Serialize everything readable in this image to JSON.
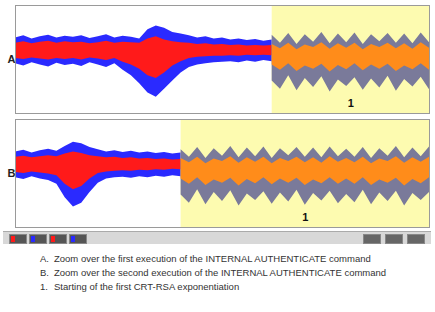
{
  "chart_data": [
    {
      "type": "area",
      "title": "A",
      "annotation": "1",
      "highlight": [
        62,
        100
      ],
      "xlim": [
        0,
        100
      ],
      "ylim": [
        -1,
        1
      ],
      "tick_labels": false,
      "series": [
        {
          "color": "#2a2aff",
          "x": [
            0,
            2,
            4,
            6,
            8,
            10,
            12,
            14,
            16,
            18,
            20,
            22,
            24,
            26,
            28,
            30,
            32,
            34,
            36,
            38,
            40,
            42,
            44,
            46,
            48,
            50,
            52,
            54,
            56,
            58,
            60,
            62
          ],
          "high": [
            0.4,
            0.44,
            0.38,
            0.42,
            0.45,
            0.4,
            0.43,
            0.41,
            0.44,
            0.39,
            0.42,
            0.46,
            0.4,
            0.43,
            0.41,
            0.38,
            0.55,
            0.62,
            0.58,
            0.5,
            0.47,
            0.44,
            0.4,
            0.42,
            0.38,
            0.4,
            0.36,
            0.38,
            0.35,
            0.37,
            0.34,
            0.36
          ],
          "low": [
            -0.08,
            -0.12,
            -0.06,
            -0.1,
            -0.14,
            -0.07,
            -0.11,
            -0.09,
            -0.13,
            -0.06,
            -0.1,
            -0.15,
            -0.08,
            -0.2,
            -0.3,
            -0.45,
            -0.62,
            -0.7,
            -0.55,
            -0.4,
            -0.25,
            -0.15,
            -0.1,
            -0.08,
            -0.06,
            -0.05,
            -0.04,
            -0.06,
            -0.03,
            -0.05,
            -0.02,
            -0.04
          ]
        },
        {
          "color": "#ff1a1a",
          "x": [
            0,
            2,
            4,
            6,
            8,
            10,
            12,
            14,
            16,
            18,
            20,
            22,
            24,
            26,
            28,
            30,
            32,
            34,
            36,
            38,
            40,
            42,
            44,
            46,
            48,
            50,
            52,
            54,
            56,
            58,
            60,
            62
          ],
          "high": [
            0.3,
            0.33,
            0.29,
            0.32,
            0.34,
            0.3,
            0.33,
            0.31,
            0.32,
            0.29,
            0.31,
            0.34,
            0.3,
            0.32,
            0.31,
            0.3,
            0.38,
            0.42,
            0.36,
            0.33,
            0.31,
            0.3,
            0.28,
            0.29,
            0.27,
            0.28,
            0.26,
            0.27,
            0.25,
            0.26,
            0.25,
            0.26
          ],
          "low": [
            0.02,
            0.0,
            0.03,
            0.01,
            -0.01,
            0.02,
            0.0,
            0.02,
            -0.01,
            0.03,
            0.01,
            -0.02,
            0.02,
            -0.05,
            -0.1,
            -0.18,
            -0.3,
            -0.35,
            -0.25,
            -0.12,
            -0.04,
            0.02,
            0.04,
            0.05,
            0.06,
            0.06,
            0.07,
            0.06,
            0.08,
            0.07,
            0.08,
            0.07
          ]
        },
        {
          "color": "#7a7a9a",
          "x": [
            62,
            64,
            66,
            68,
            70,
            72,
            74,
            76,
            78,
            80,
            82,
            84,
            86,
            88,
            90,
            92,
            94,
            96,
            98,
            100
          ],
          "high": [
            0.45,
            0.3,
            0.48,
            0.28,
            0.46,
            0.32,
            0.5,
            0.29,
            0.47,
            0.31,
            0.49,
            0.28,
            0.46,
            0.33,
            0.48,
            0.3,
            0.47,
            0.29,
            0.49,
            0.31
          ],
          "low": [
            -0.4,
            -0.55,
            -0.3,
            -0.58,
            -0.35,
            -0.52,
            -0.32,
            -0.6,
            -0.38,
            -0.5,
            -0.34,
            -0.57,
            -0.36,
            -0.53,
            -0.31,
            -0.59,
            -0.37,
            -0.51,
            -0.33,
            -0.56
          ]
        },
        {
          "color": "#ff8c1a",
          "x": [
            62,
            64,
            66,
            68,
            70,
            72,
            74,
            76,
            78,
            80,
            82,
            84,
            86,
            88,
            90,
            92,
            94,
            96,
            98,
            100
          ],
          "high": [
            0.28,
            0.2,
            0.3,
            0.18,
            0.27,
            0.22,
            0.31,
            0.19,
            0.29,
            0.21,
            0.3,
            0.18,
            0.28,
            0.22,
            0.3,
            0.2,
            0.29,
            0.19,
            0.31,
            0.21
          ],
          "low": [
            -0.1,
            -0.2,
            -0.08,
            -0.22,
            -0.12,
            -0.18,
            -0.09,
            -0.23,
            -0.11,
            -0.19,
            -0.08,
            -0.21,
            -0.1,
            -0.18,
            -0.09,
            -0.22,
            -0.12,
            -0.19,
            -0.08,
            -0.2
          ]
        }
      ]
    },
    {
      "type": "area",
      "title": "B",
      "annotation": "1",
      "highlight": [
        40,
        100
      ],
      "xlim": [
        0,
        100
      ],
      "ylim": [
        -1,
        1
      ],
      "tick_labels": false,
      "series": [
        {
          "color": "#2a2aff",
          "x": [
            0,
            2,
            4,
            6,
            8,
            10,
            12,
            14,
            16,
            18,
            20,
            22,
            24,
            26,
            28,
            30,
            32,
            34,
            36,
            38,
            40
          ],
          "high": [
            0.4,
            0.43,
            0.38,
            0.42,
            0.45,
            0.41,
            0.5,
            0.58,
            0.55,
            0.48,
            0.44,
            0.4,
            0.42,
            0.39,
            0.41,
            0.38,
            0.4,
            0.37,
            0.39,
            0.36,
            0.38
          ],
          "low": [
            -0.08,
            -0.11,
            -0.06,
            -0.1,
            -0.13,
            -0.2,
            -0.45,
            -0.62,
            -0.55,
            -0.35,
            -0.18,
            -0.1,
            -0.08,
            -0.07,
            -0.09,
            -0.06,
            -0.08,
            -0.05,
            -0.07,
            -0.04,
            -0.06
          ]
        },
        {
          "color": "#ff1a1a",
          "x": [
            0,
            2,
            4,
            6,
            8,
            10,
            12,
            14,
            16,
            18,
            20,
            22,
            24,
            26,
            28,
            30,
            32,
            34,
            36,
            38,
            40
          ],
          "high": [
            0.3,
            0.32,
            0.29,
            0.31,
            0.33,
            0.31,
            0.36,
            0.4,
            0.37,
            0.33,
            0.31,
            0.29,
            0.3,
            0.28,
            0.29,
            0.27,
            0.28,
            0.26,
            0.27,
            0.25,
            0.26
          ],
          "low": [
            0.02,
            0.0,
            0.03,
            0.01,
            -0.01,
            -0.04,
            -0.2,
            -0.3,
            -0.24,
            -0.1,
            0.0,
            0.03,
            0.04,
            0.05,
            0.04,
            0.06,
            0.05,
            0.07,
            0.06,
            0.08,
            0.07
          ]
        },
        {
          "color": "#7a7a9a",
          "x": [
            40,
            42,
            44,
            46,
            48,
            50,
            52,
            54,
            56,
            58,
            60,
            62,
            64,
            66,
            68,
            70,
            72,
            74,
            76,
            78,
            80,
            82,
            84,
            86,
            88,
            90,
            92,
            94,
            96,
            98,
            100
          ],
          "high": [
            0.44,
            0.3,
            0.48,
            0.28,
            0.46,
            0.32,
            0.5,
            0.29,
            0.47,
            0.31,
            0.49,
            0.28,
            0.46,
            0.33,
            0.48,
            0.3,
            0.47,
            0.29,
            0.49,
            0.31,
            0.45,
            0.3,
            0.48,
            0.28,
            0.46,
            0.32,
            0.5,
            0.29,
            0.47,
            0.31,
            0.49
          ],
          "low": [
            -0.4,
            -0.55,
            -0.3,
            -0.58,
            -0.35,
            -0.52,
            -0.32,
            -0.6,
            -0.38,
            -0.5,
            -0.34,
            -0.57,
            -0.36,
            -0.53,
            -0.31,
            -0.59,
            -0.37,
            -0.51,
            -0.33,
            -0.56,
            -0.39,
            -0.54,
            -0.31,
            -0.58,
            -0.36,
            -0.52,
            -0.33,
            -0.6,
            -0.37,
            -0.5,
            -0.35
          ]
        },
        {
          "color": "#ff8c1a",
          "x": [
            40,
            42,
            44,
            46,
            48,
            50,
            52,
            54,
            56,
            58,
            60,
            62,
            64,
            66,
            68,
            70,
            72,
            74,
            76,
            78,
            80,
            82,
            84,
            86,
            88,
            90,
            92,
            94,
            96,
            98,
            100
          ],
          "high": [
            0.28,
            0.2,
            0.3,
            0.18,
            0.27,
            0.22,
            0.31,
            0.19,
            0.29,
            0.21,
            0.3,
            0.18,
            0.28,
            0.22,
            0.3,
            0.2,
            0.29,
            0.19,
            0.31,
            0.21,
            0.28,
            0.2,
            0.3,
            0.18,
            0.27,
            0.22,
            0.31,
            0.19,
            0.29,
            0.21,
            0.3
          ],
          "low": [
            -0.1,
            -0.2,
            -0.08,
            -0.22,
            -0.12,
            -0.18,
            -0.09,
            -0.23,
            -0.11,
            -0.19,
            -0.08,
            -0.21,
            -0.1,
            -0.18,
            -0.09,
            -0.22,
            -0.12,
            -0.19,
            -0.08,
            -0.2,
            -0.1,
            -0.2,
            -0.08,
            -0.22,
            -0.12,
            -0.18,
            -0.09,
            -0.23,
            -0.11,
            -0.19,
            -0.08
          ]
        }
      ]
    }
  ],
  "caption": [
    {
      "label": "A.",
      "text": "Zoom over the first execution of the INTERNAL AUTHENTICATE command"
    },
    {
      "label": "B.",
      "text": "Zoom over the second execution of the INTERNAL AUTHENTICATE command"
    },
    {
      "label": "1.",
      "text": "Starting of the first CRT-RSA exponentiation"
    }
  ]
}
